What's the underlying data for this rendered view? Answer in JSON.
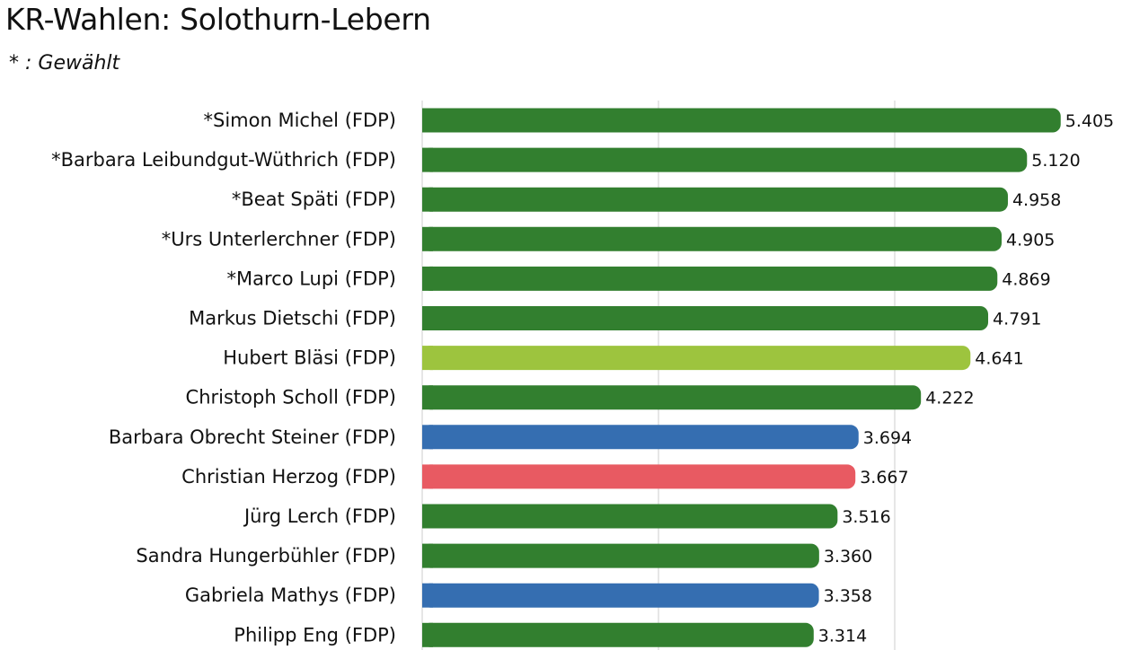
{
  "page": {
    "title": "KR-Wahlen: Solothurn-Lebern",
    "subtitle": "* : Gewählt"
  },
  "colors": {
    "green": "#327F2F",
    "lightgreen": "#9DC43E",
    "blue": "#356EB1",
    "red": "#E85A62",
    "grid": "#cccccc"
  },
  "chart_data": {
    "type": "bar",
    "orientation": "horizontal",
    "title": "KR-Wahlen: Solothurn-Lebern",
    "subtitle": "* : Gewählt",
    "xlabel": "",
    "ylabel": "",
    "xlim": [
      0,
      6000
    ],
    "grid": "vertical",
    "categories": [
      "*Simon Michel (FDP)",
      "*Barbara Leibundgut-Wüthrich (FDP)",
      "*Beat Späti (FDP)",
      "*Urs Unterlerchner (FDP)",
      "*Marco Lupi (FDP)",
      "Markus Dietschi (FDP)",
      "Hubert Bläsi (FDP)",
      "Christoph Scholl (FDP)",
      "Barbara Obrecht Steiner (FDP)",
      "Christian Herzog (FDP)",
      "Jürg Lerch (FDP)",
      "Sandra Hungerbühler (FDP)",
      "Gabriela Mathys (FDP)",
      "Philipp Eng (FDP)"
    ],
    "values": [
      5405,
      5120,
      4958,
      4905,
      4869,
      4791,
      4641,
      4222,
      3694,
      3667,
      3516,
      3360,
      3358,
      3314
    ],
    "value_labels": [
      "5.405",
      "5.120",
      "4.958",
      "4.905",
      "4.869",
      "4.791",
      "4.641",
      "4.222",
      "3.694",
      "3.667",
      "3.516",
      "3.360",
      "3.358",
      "3.314"
    ],
    "bar_colors": [
      "green",
      "green",
      "green",
      "green",
      "green",
      "green",
      "lightgreen",
      "green",
      "blue",
      "red",
      "green",
      "green",
      "blue",
      "green"
    ]
  }
}
